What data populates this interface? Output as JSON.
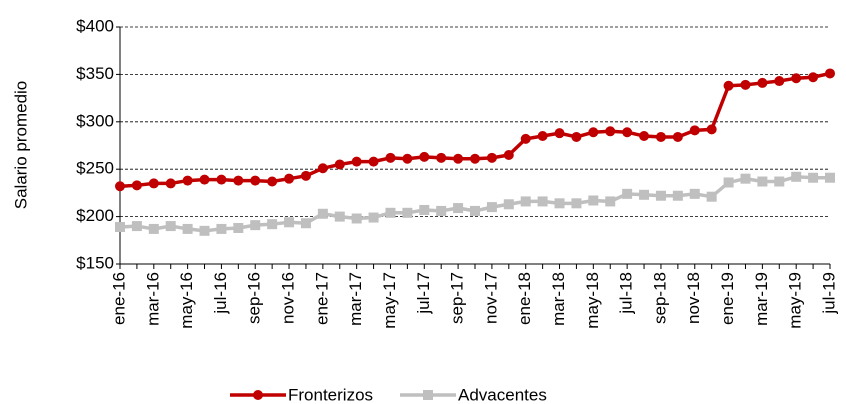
{
  "chart_data": {
    "type": "line",
    "y_label": "Salario promedio",
    "categories": [
      "ene-16",
      null,
      "mar-16",
      null,
      "may-16",
      null,
      "jul-16",
      null,
      "sep-16",
      null,
      "nov-16",
      null,
      "ene-17",
      null,
      "mar-17",
      null,
      "may-17",
      null,
      "jul-17",
      null,
      "sep-17",
      null,
      "nov-17",
      null,
      "ene-18",
      null,
      "mar-18",
      null,
      "may-18",
      null,
      "jul-18",
      null,
      "sep-18",
      null,
      "nov-18",
      null,
      "ene-19",
      null,
      "mar-19",
      null,
      "may-19",
      null,
      "jul-19"
    ],
    "series": [
      {
        "name": "Fronterizos",
        "color": "#c00000",
        "marker": "circle",
        "values": [
          232,
          233,
          235,
          235,
          238,
          239,
          239,
          238,
          238,
          237,
          240,
          243,
          251,
          255,
          258,
          258,
          262,
          261,
          263,
          262,
          261,
          261,
          262,
          265,
          282,
          285,
          288,
          284,
          289,
          290,
          289,
          285,
          284,
          284,
          291,
          292,
          338,
          339,
          341,
          343,
          346,
          347,
          351
        ]
      },
      {
        "name": "Advacentes",
        "color": "#bfbfbf",
        "marker": "square",
        "values": [
          189,
          190,
          187,
          190,
          187,
          185,
          187,
          188,
          191,
          192,
          194,
          193,
          203,
          200,
          198,
          199,
          204,
          204,
          207,
          206,
          209,
          206,
          210,
          213,
          216,
          216,
          214,
          214,
          217,
          216,
          224,
          223,
          222,
          222,
          224,
          221,
          236,
          240,
          237,
          237,
          242,
          241,
          241
        ]
      }
    ],
    "ylim": [
      150,
      400
    ],
    "yticks": [
      {
        "value": 150,
        "label": "$150"
      },
      {
        "value": 200,
        "label": "$200"
      },
      {
        "value": 250,
        "label": "$250"
      },
      {
        "value": 300,
        "label": "$300"
      },
      {
        "value": 350,
        "label": "$350"
      },
      {
        "value": 400,
        "label": "$400"
      }
    ],
    "grid": true,
    "legend": "bottom"
  }
}
